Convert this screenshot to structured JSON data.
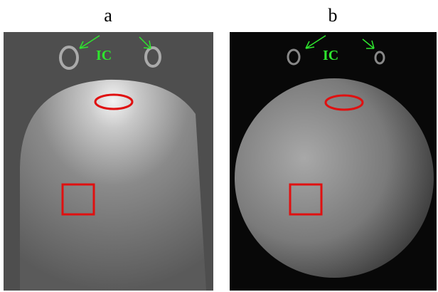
{
  "panels": [
    {
      "label": "a",
      "annotation": "IC"
    },
    {
      "label": "b",
      "annotation": "IC"
    }
  ]
}
